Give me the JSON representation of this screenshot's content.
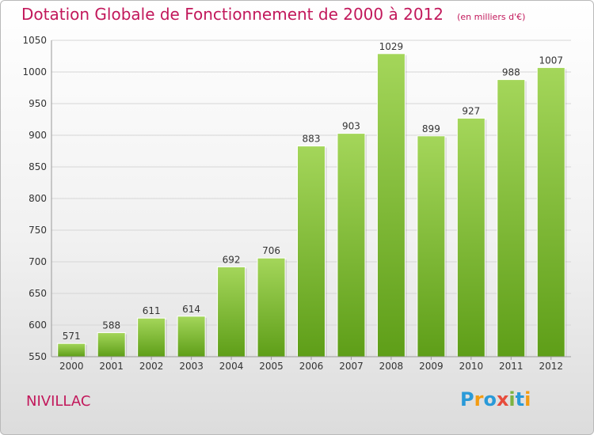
{
  "header": {
    "title": "Dotation Globale de Fonctionnement de 2000 à 2012",
    "subtitle": "(en milliers d'€)"
  },
  "footer": {
    "commune": "NIVILLAC",
    "logo_text": "Proxiti",
    "logo_letters": [
      {
        "char": "P",
        "color": "#2a9ad8"
      },
      {
        "char": "r",
        "color": "#f39c12"
      },
      {
        "char": "o",
        "color": "#2a9ad8"
      },
      {
        "char": "x",
        "color": "#e74c3c"
      },
      {
        "char": "i",
        "color": "#7cb342"
      },
      {
        "char": "t",
        "color": "#2a9ad8"
      },
      {
        "char": "i",
        "color": "#f39c12"
      }
    ]
  },
  "colors": {
    "title": "#c2185b",
    "bar_top": "#a4d65a",
    "bar_bottom": "#5e9e18",
    "grid": "#d6d6d6",
    "axis_text": "#333333"
  },
  "chart_data": {
    "type": "bar",
    "categories": [
      "2000",
      "2001",
      "2002",
      "2003",
      "2004",
      "2005",
      "2006",
      "2007",
      "2008",
      "2009",
      "2010",
      "2011",
      "2012"
    ],
    "values": [
      571,
      588,
      611,
      614,
      692,
      706,
      883,
      903,
      1029,
      899,
      927,
      988,
      1007
    ],
    "ylim": [
      550,
      1050
    ],
    "yticks": [
      550,
      600,
      650,
      700,
      750,
      800,
      850,
      900,
      950,
      1000,
      1050
    ],
    "grid": true,
    "xlabel": "",
    "ylabel": ""
  }
}
